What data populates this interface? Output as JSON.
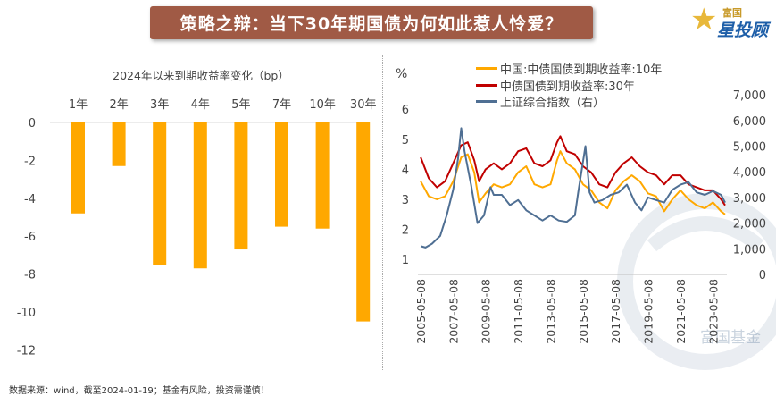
{
  "banner": {
    "title": "策略之辩：当下30年期国债为何如此惹人怜爱？"
  },
  "logo": {
    "top_text": "富国",
    "main_text": "星投顾"
  },
  "watermark": {
    "text": "富国基金"
  },
  "footer": {
    "source": "数据来源：wind，截至2024-01-19；基金有风险，投资需谨慎！"
  },
  "colors": {
    "bar": "#ffa800",
    "cn10y": "#ffa800",
    "cb30y": "#c00000",
    "sh_index": "#4f6f93"
  },
  "chart_data": [
    {
      "type": "bar",
      "title": "2024年以来到期收益率变化（bp）",
      "categories": [
        "1年",
        "2年",
        "3年",
        "4年",
        "5年",
        "7年",
        "10年",
        "30年"
      ],
      "values": [
        -4.8,
        -2.3,
        -7.5,
        -7.7,
        -6.7,
        -5.5,
        -5.6,
        -10.5
      ],
      "ylim": [
        -12,
        0
      ],
      "yticks": [
        "0",
        "-2",
        "-4",
        "-6",
        "-8",
        "-10",
        "-12"
      ],
      "category_labels_position": "top"
    },
    {
      "type": "line",
      "ylabel": "%",
      "yticks_left": [
        "1",
        "2",
        "3",
        "4",
        "5",
        "6"
      ],
      "yticks_right": [
        "0",
        "1,000",
        "2,000",
        "3,000",
        "4,000",
        "5,000",
        "6,000",
        "7,000"
      ],
      "ylim_left": [
        0.5,
        6
      ],
      "ylim_right": [
        0,
        7000
      ],
      "x_ticks": [
        "2005-05-08",
        "2007-05-08",
        "2009-05-08",
        "2011-05-08",
        "2013-05-08",
        "2015-05-08",
        "2017-05-08",
        "2019-05-08",
        "2021-05-08",
        "2023-05-08"
      ],
      "legend": [
        "中国:中债国债到期收益率:10年",
        "中债国债到期收益率:30年",
        "上证综合指数（右）"
      ],
      "legend_position": "top",
      "series": [
        {
          "name": "中国:中债国债到期收益率:10年",
          "axis": "left",
          "x": [
            2005.3,
            2005.8,
            2006.3,
            2006.8,
            2007.3,
            2007.8,
            2008.2,
            2008.6,
            2008.9,
            2009.3,
            2009.8,
            2010.3,
            2010.8,
            2011.3,
            2011.8,
            2012.3,
            2012.8,
            2013.3,
            2013.7,
            2013.9,
            2014.3,
            2014.8,
            2015.3,
            2015.8,
            2016.3,
            2016.8,
            2017.3,
            2017.8,
            2018.3,
            2018.8,
            2019.3,
            2019.8,
            2020.3,
            2020.8,
            2021.3,
            2021.8,
            2022.3,
            2022.8,
            2023.3,
            2023.8,
            2024.05
          ],
          "values": [
            3.6,
            3.1,
            3.0,
            3.1,
            3.6,
            4.4,
            4.5,
            3.9,
            2.9,
            3.2,
            3.5,
            3.4,
            3.5,
            3.9,
            4.1,
            3.5,
            3.4,
            3.5,
            4.3,
            4.6,
            4.2,
            4.0,
            3.5,
            3.3,
            2.9,
            2.7,
            3.3,
            3.6,
            3.8,
            3.6,
            3.2,
            3.1,
            2.6,
            3.0,
            3.3,
            3.0,
            2.8,
            2.7,
            2.9,
            2.6,
            2.5
          ]
        },
        {
          "name": "中债国债到期收益率:30年",
          "axis": "left",
          "x": [
            2005.3,
            2005.8,
            2006.3,
            2006.8,
            2007.3,
            2007.8,
            2008.2,
            2008.6,
            2008.9,
            2009.3,
            2009.8,
            2010.3,
            2010.8,
            2011.3,
            2011.8,
            2012.3,
            2012.8,
            2013.3,
            2013.7,
            2013.9,
            2014.3,
            2014.8,
            2015.3,
            2015.8,
            2016.3,
            2016.8,
            2017.3,
            2017.8,
            2018.3,
            2018.8,
            2019.3,
            2019.8,
            2020.3,
            2020.8,
            2021.3,
            2021.8,
            2022.3,
            2022.8,
            2023.3,
            2023.8,
            2024.05
          ],
          "values": [
            4.4,
            3.7,
            3.4,
            3.6,
            4.2,
            4.8,
            4.9,
            4.3,
            3.6,
            4.0,
            4.2,
            4.0,
            4.2,
            4.6,
            4.7,
            4.2,
            4.1,
            4.3,
            4.9,
            5.1,
            4.6,
            4.5,
            4.1,
            3.9,
            3.5,
            3.4,
            3.9,
            4.2,
            4.4,
            4.1,
            3.9,
            3.8,
            3.5,
            3.8,
            3.8,
            3.5,
            3.4,
            3.3,
            3.3,
            3.0,
            2.8
          ]
        },
        {
          "name": "上证综合指数（右）",
          "axis": "right",
          "x": [
            2005.3,
            2005.6,
            2006.0,
            2006.5,
            2006.9,
            2007.3,
            2007.6,
            2007.8,
            2008.0,
            2008.4,
            2008.8,
            2009.2,
            2009.6,
            2009.8,
            2010.3,
            2010.8,
            2011.3,
            2011.8,
            2012.3,
            2012.8,
            2013.3,
            2013.8,
            2014.3,
            2014.8,
            2015.0,
            2015.45,
            2015.7,
            2016.0,
            2016.5,
            2017.0,
            2017.5,
            2018.0,
            2018.5,
            2018.9,
            2019.3,
            2019.8,
            2020.3,
            2020.8,
            2021.3,
            2021.8,
            2022.3,
            2022.8,
            2023.3,
            2023.8,
            2024.05
          ],
          "values": [
            1100,
            1050,
            1200,
            1500,
            2300,
            3300,
            4500,
            5700,
            4800,
            3500,
            2000,
            2300,
            3400,
            3100,
            3100,
            2700,
            2900,
            2500,
            2300,
            2100,
            2300,
            2100,
            2050,
            2300,
            3200,
            5000,
            3200,
            2800,
            2900,
            3100,
            3200,
            3500,
            2800,
            2500,
            3000,
            2900,
            2800,
            3300,
            3500,
            3600,
            3200,
            3100,
            3250,
            3100,
            2800
          ]
        }
      ]
    }
  ]
}
